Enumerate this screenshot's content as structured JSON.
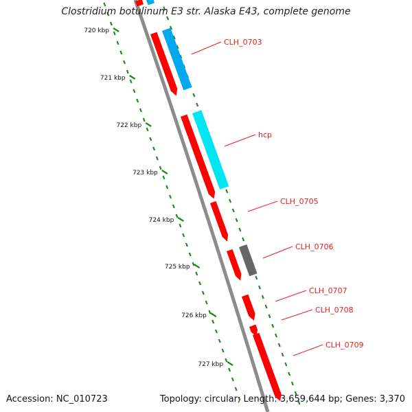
{
  "title": "Clostridium botulinum E3 str. Alaska E43, complete genome",
  "footer": {
    "accession": "Accession: NC_010723",
    "summary": "Topology: circular; Length: 3,659,644 bp; Genes: 3,370"
  },
  "colors": {
    "forward_cds": "#ff0000",
    "reverse_cds": "#00a8f0",
    "reverse_cds_light": "#00e6f2",
    "other_feature": "#666666",
    "backbone": "#8c8c8c",
    "gc_dots": "#1d8a1d",
    "gene_label": "#e8201e"
  },
  "kbp_ticks": [
    "720 kbp",
    "721 kbp",
    "722 kbp",
    "723 kbp",
    "724 kbp",
    "725 kbp",
    "726 kbp",
    "727 kbp"
  ],
  "gene_labels": [
    "CLH_0703",
    "hcp",
    "CLH_0705",
    "CLH_0706",
    "CLH_0707",
    "CLH_0708",
    "CLH_0709"
  ]
}
